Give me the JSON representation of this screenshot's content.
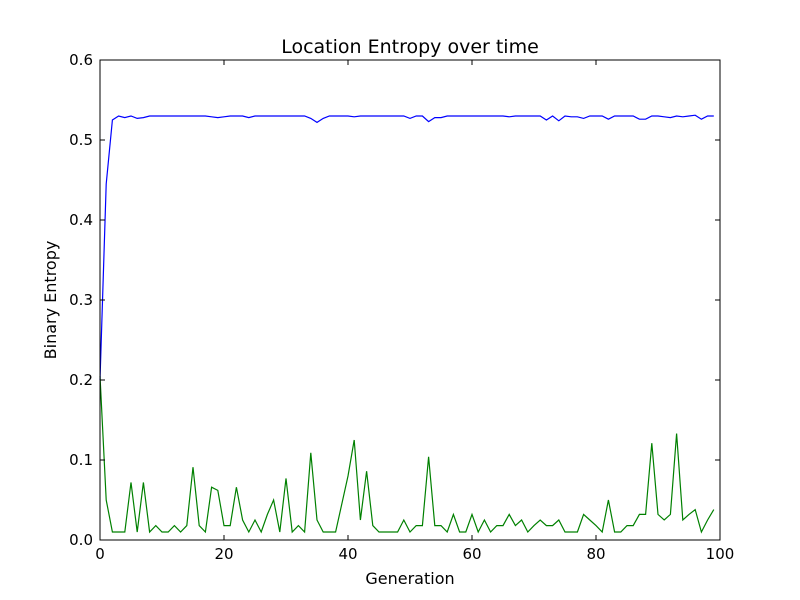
{
  "chart_data": {
    "type": "line",
    "title": "Location Entropy over time",
    "xlabel": "Generation",
    "ylabel": "Binary Entropy",
    "xlim": [
      0,
      100
    ],
    "ylim": [
      0.0,
      0.6
    ],
    "xticks": [
      "0",
      "20",
      "40",
      "60",
      "80",
      "100"
    ],
    "yticks": [
      "0.0",
      "0.1",
      "0.2",
      "0.3",
      "0.4",
      "0.5",
      "0.6"
    ],
    "grid": false,
    "legend": "none",
    "series": [
      {
        "color": "#0000ff",
        "x": [
          0,
          1,
          2,
          3,
          4,
          5,
          6,
          7,
          8,
          9,
          10,
          11,
          12,
          13,
          14,
          15,
          16,
          17,
          18,
          19,
          20,
          21,
          22,
          23,
          24,
          25,
          26,
          27,
          28,
          29,
          30,
          31,
          32,
          33,
          34,
          35,
          36,
          37,
          38,
          39,
          40,
          41,
          42,
          43,
          44,
          45,
          46,
          47,
          48,
          49,
          50,
          51,
          52,
          53,
          54,
          55,
          56,
          57,
          58,
          59,
          60,
          61,
          62,
          63,
          64,
          65,
          66,
          67,
          68,
          69,
          70,
          71,
          72,
          73,
          74,
          75,
          76,
          77,
          78,
          79,
          80,
          81,
          82,
          83,
          84,
          85,
          86,
          87,
          88,
          89,
          90,
          91,
          92,
          93,
          94,
          95,
          96,
          97,
          98,
          99
        ],
        "values": [
          0.2,
          0.445,
          0.525,
          0.53,
          0.528,
          0.53,
          0.527,
          0.528,
          0.53,
          0.53,
          0.53,
          0.53,
          0.53,
          0.53,
          0.53,
          0.53,
          0.53,
          0.53,
          0.529,
          0.528,
          0.529,
          0.53,
          0.53,
          0.53,
          0.528,
          0.53,
          0.53,
          0.53,
          0.53,
          0.53,
          0.53,
          0.53,
          0.53,
          0.53,
          0.527,
          0.522,
          0.527,
          0.53,
          0.53,
          0.53,
          0.53,
          0.529,
          0.53,
          0.53,
          0.53,
          0.53,
          0.53,
          0.53,
          0.53,
          0.53,
          0.527,
          0.53,
          0.53,
          0.523,
          0.528,
          0.528,
          0.53,
          0.53,
          0.53,
          0.53,
          0.53,
          0.53,
          0.53,
          0.53,
          0.53,
          0.53,
          0.529,
          0.53,
          0.53,
          0.53,
          0.53,
          0.53,
          0.525,
          0.53,
          0.524,
          0.53,
          0.529,
          0.529,
          0.527,
          0.53,
          0.53,
          0.53,
          0.526,
          0.53,
          0.53,
          0.53,
          0.53,
          0.526,
          0.526,
          0.53,
          0.53,
          0.529,
          0.528,
          0.53,
          0.529,
          0.53,
          0.531,
          0.526,
          0.53,
          0.53
        ]
      },
      {
        "color": "#008000",
        "x": [
          0,
          1,
          2,
          3,
          4,
          5,
          6,
          7,
          8,
          9,
          10,
          11,
          12,
          13,
          14,
          15,
          16,
          17,
          18,
          19,
          20,
          21,
          22,
          23,
          24,
          25,
          26,
          27,
          28,
          29,
          30,
          31,
          32,
          33,
          34,
          35,
          36,
          37,
          38,
          39,
          40,
          41,
          42,
          43,
          44,
          45,
          46,
          47,
          48,
          49,
          50,
          51,
          52,
          53,
          54,
          55,
          56,
          57,
          58,
          59,
          60,
          61,
          62,
          63,
          64,
          65,
          66,
          67,
          68,
          69,
          70,
          71,
          72,
          73,
          74,
          75,
          76,
          77,
          78,
          79,
          80,
          81,
          82,
          83,
          84,
          85,
          86,
          87,
          88,
          89,
          90,
          91,
          92,
          93,
          94,
          95,
          96,
          97,
          98,
          99
        ],
        "values": [
          0.205,
          0.05,
          0.01,
          0.01,
          0.01,
          0.072,
          0.01,
          0.072,
          0.01,
          0.018,
          0.01,
          0.01,
          0.018,
          0.01,
          0.018,
          0.091,
          0.018,
          0.01,
          0.066,
          0.062,
          0.018,
          0.018,
          0.066,
          0.025,
          0.01,
          0.025,
          0.01,
          0.032,
          0.05,
          0.01,
          0.077,
          0.01,
          0.018,
          0.01,
          0.109,
          0.025,
          0.01,
          0.01,
          0.01,
          0.045,
          0.08,
          0.125,
          0.025,
          0.086,
          0.018,
          0.01,
          0.01,
          0.01,
          0.01,
          0.025,
          0.01,
          0.018,
          0.018,
          0.104,
          0.018,
          0.018,
          0.01,
          0.032,
          0.01,
          0.01,
          0.032,
          0.01,
          0.025,
          0.01,
          0.018,
          0.018,
          0.032,
          0.018,
          0.025,
          0.01,
          0.018,
          0.025,
          0.018,
          0.018,
          0.025,
          0.01,
          0.01,
          0.01,
          0.032,
          0.025,
          0.018,
          0.01,
          0.05,
          0.01,
          0.01,
          0.018,
          0.018,
          0.032,
          0.032,
          0.121,
          0.032,
          0.025,
          0.032,
          0.133,
          0.025,
          0.032,
          0.038,
          0.01,
          0.025,
          0.038
        ]
      }
    ]
  }
}
